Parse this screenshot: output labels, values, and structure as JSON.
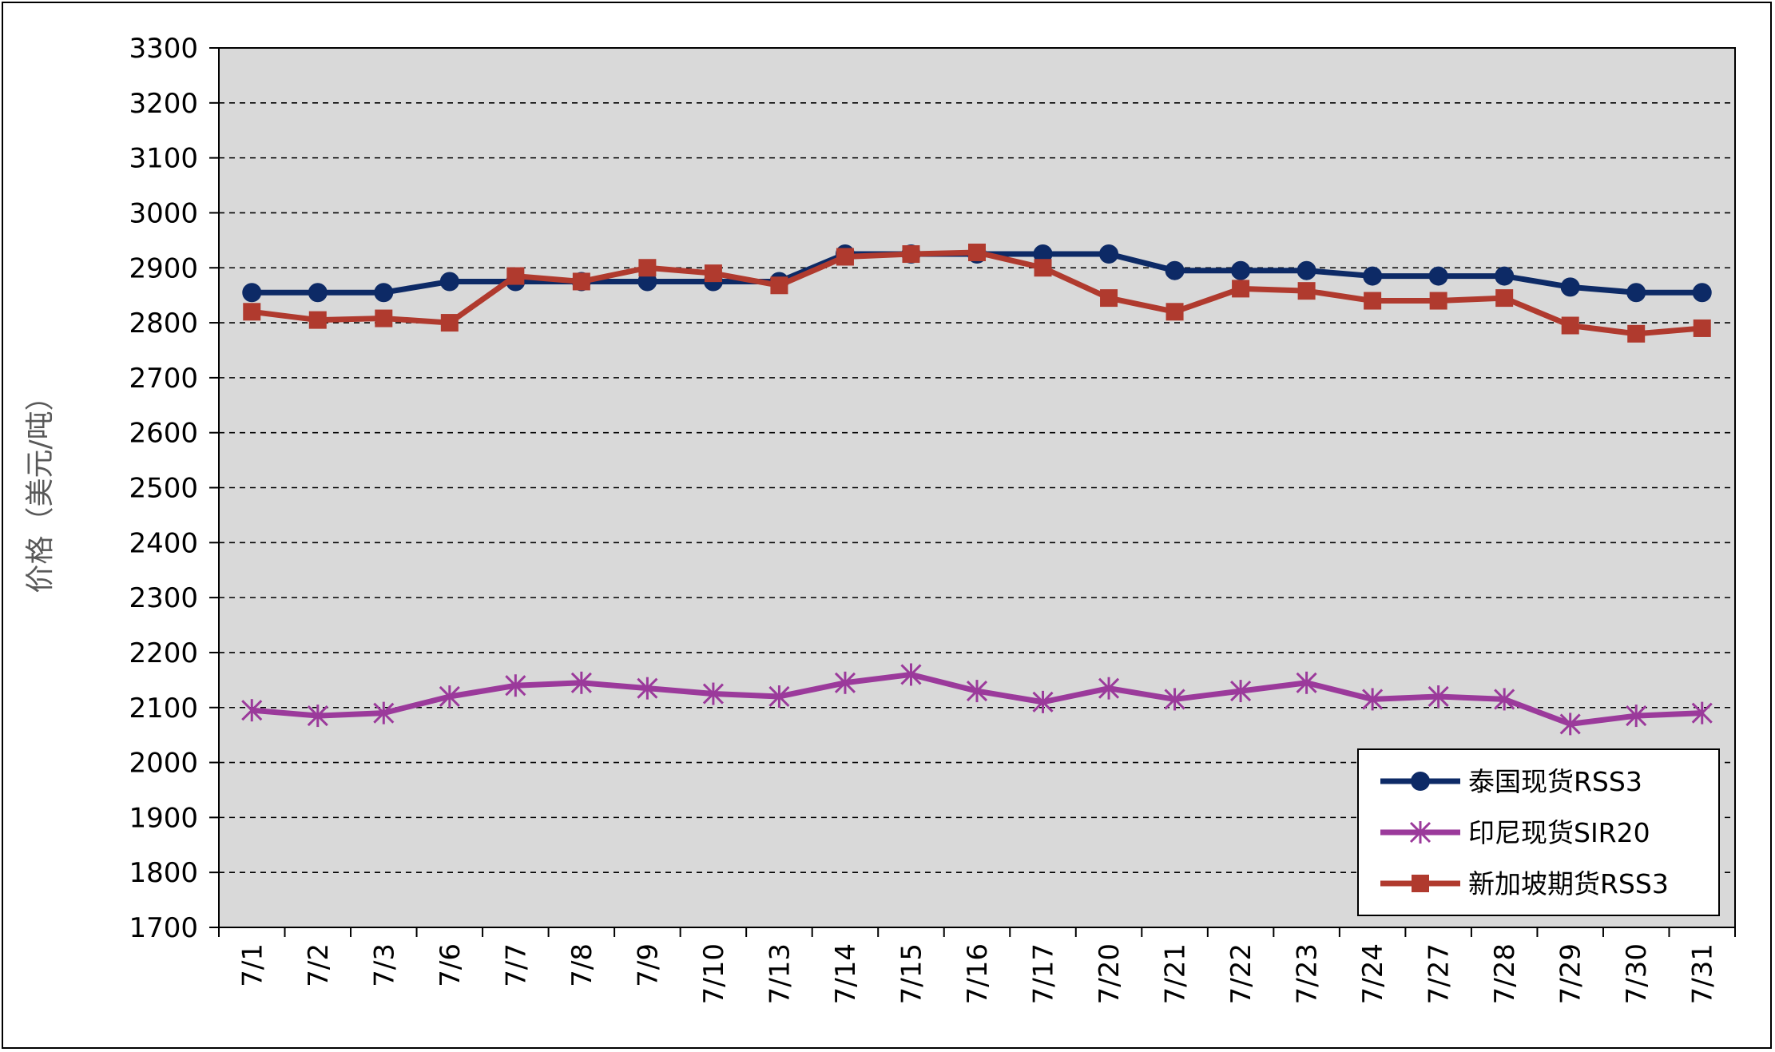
{
  "chart_data": {
    "type": "line",
    "ylabel": "价格（美元/吨）",
    "ylim": [
      1700,
      3300
    ],
    "ystep": 100,
    "grid": true,
    "legend_position": "bottom-right",
    "categories": [
      "7/1",
      "7/2",
      "7/3",
      "7/6",
      "7/7",
      "7/8",
      "7/9",
      "7/10",
      "7/13",
      "7/14",
      "7/15",
      "7/16",
      "7/17",
      "7/20",
      "7/21",
      "7/22",
      "7/23",
      "7/24",
      "7/27",
      "7/28",
      "7/29",
      "7/30",
      "7/31"
    ],
    "series": [
      {
        "name": "泰国现货RSS3",
        "color": "#0D2A66",
        "marker": "circle",
        "values": [
          2855,
          2855,
          2855,
          2875,
          2875,
          2875,
          2875,
          2875,
          2875,
          2925,
          2925,
          2925,
          2925,
          2925,
          2895,
          2895,
          2895,
          2885,
          2885,
          2885,
          2865,
          2855,
          2855
        ]
      },
      {
        "name": "印尼现货SIR20",
        "color": "#9B3A9B",
        "marker": "star",
        "values": [
          2095,
          2085,
          2090,
          2120,
          2140,
          2145,
          2135,
          2125,
          2120,
          2145,
          2160,
          2130,
          2110,
          2135,
          2115,
          2130,
          2145,
          2115,
          2120,
          2115,
          2070,
          2085,
          2090
        ]
      },
      {
        "name": "新加坡期货RSS3",
        "color": "#B03A2E",
        "marker": "square",
        "values": [
          2820,
          2805,
          2808,
          2800,
          2885,
          2875,
          2900,
          2890,
          2868,
          2920,
          2925,
          2928,
          2900,
          2845,
          2820,
          2862,
          2858,
          2840,
          2840,
          2845,
          2795,
          2780,
          2790
        ]
      }
    ]
  },
  "colors": {
    "plot_background": "#D9D9D9",
    "gridline": "#000000"
  }
}
